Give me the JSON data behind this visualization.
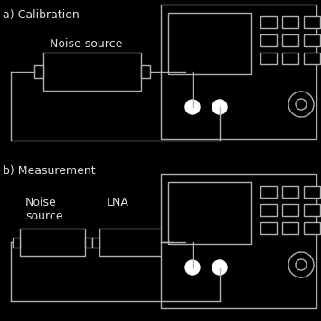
{
  "bg_color": "#000000",
  "line_color": "#b0b0b0",
  "text_color": "#e0e0e0",
  "title_a": "a) Calibration",
  "title_b": "b) Measurement",
  "label_noise_source_a": "Noise source",
  "label_noise_source_b": "Noise\nsource",
  "label_lna": "LNA",
  "fig_width": 3.55,
  "fig_height": 3.54,
  "dpi": 100
}
